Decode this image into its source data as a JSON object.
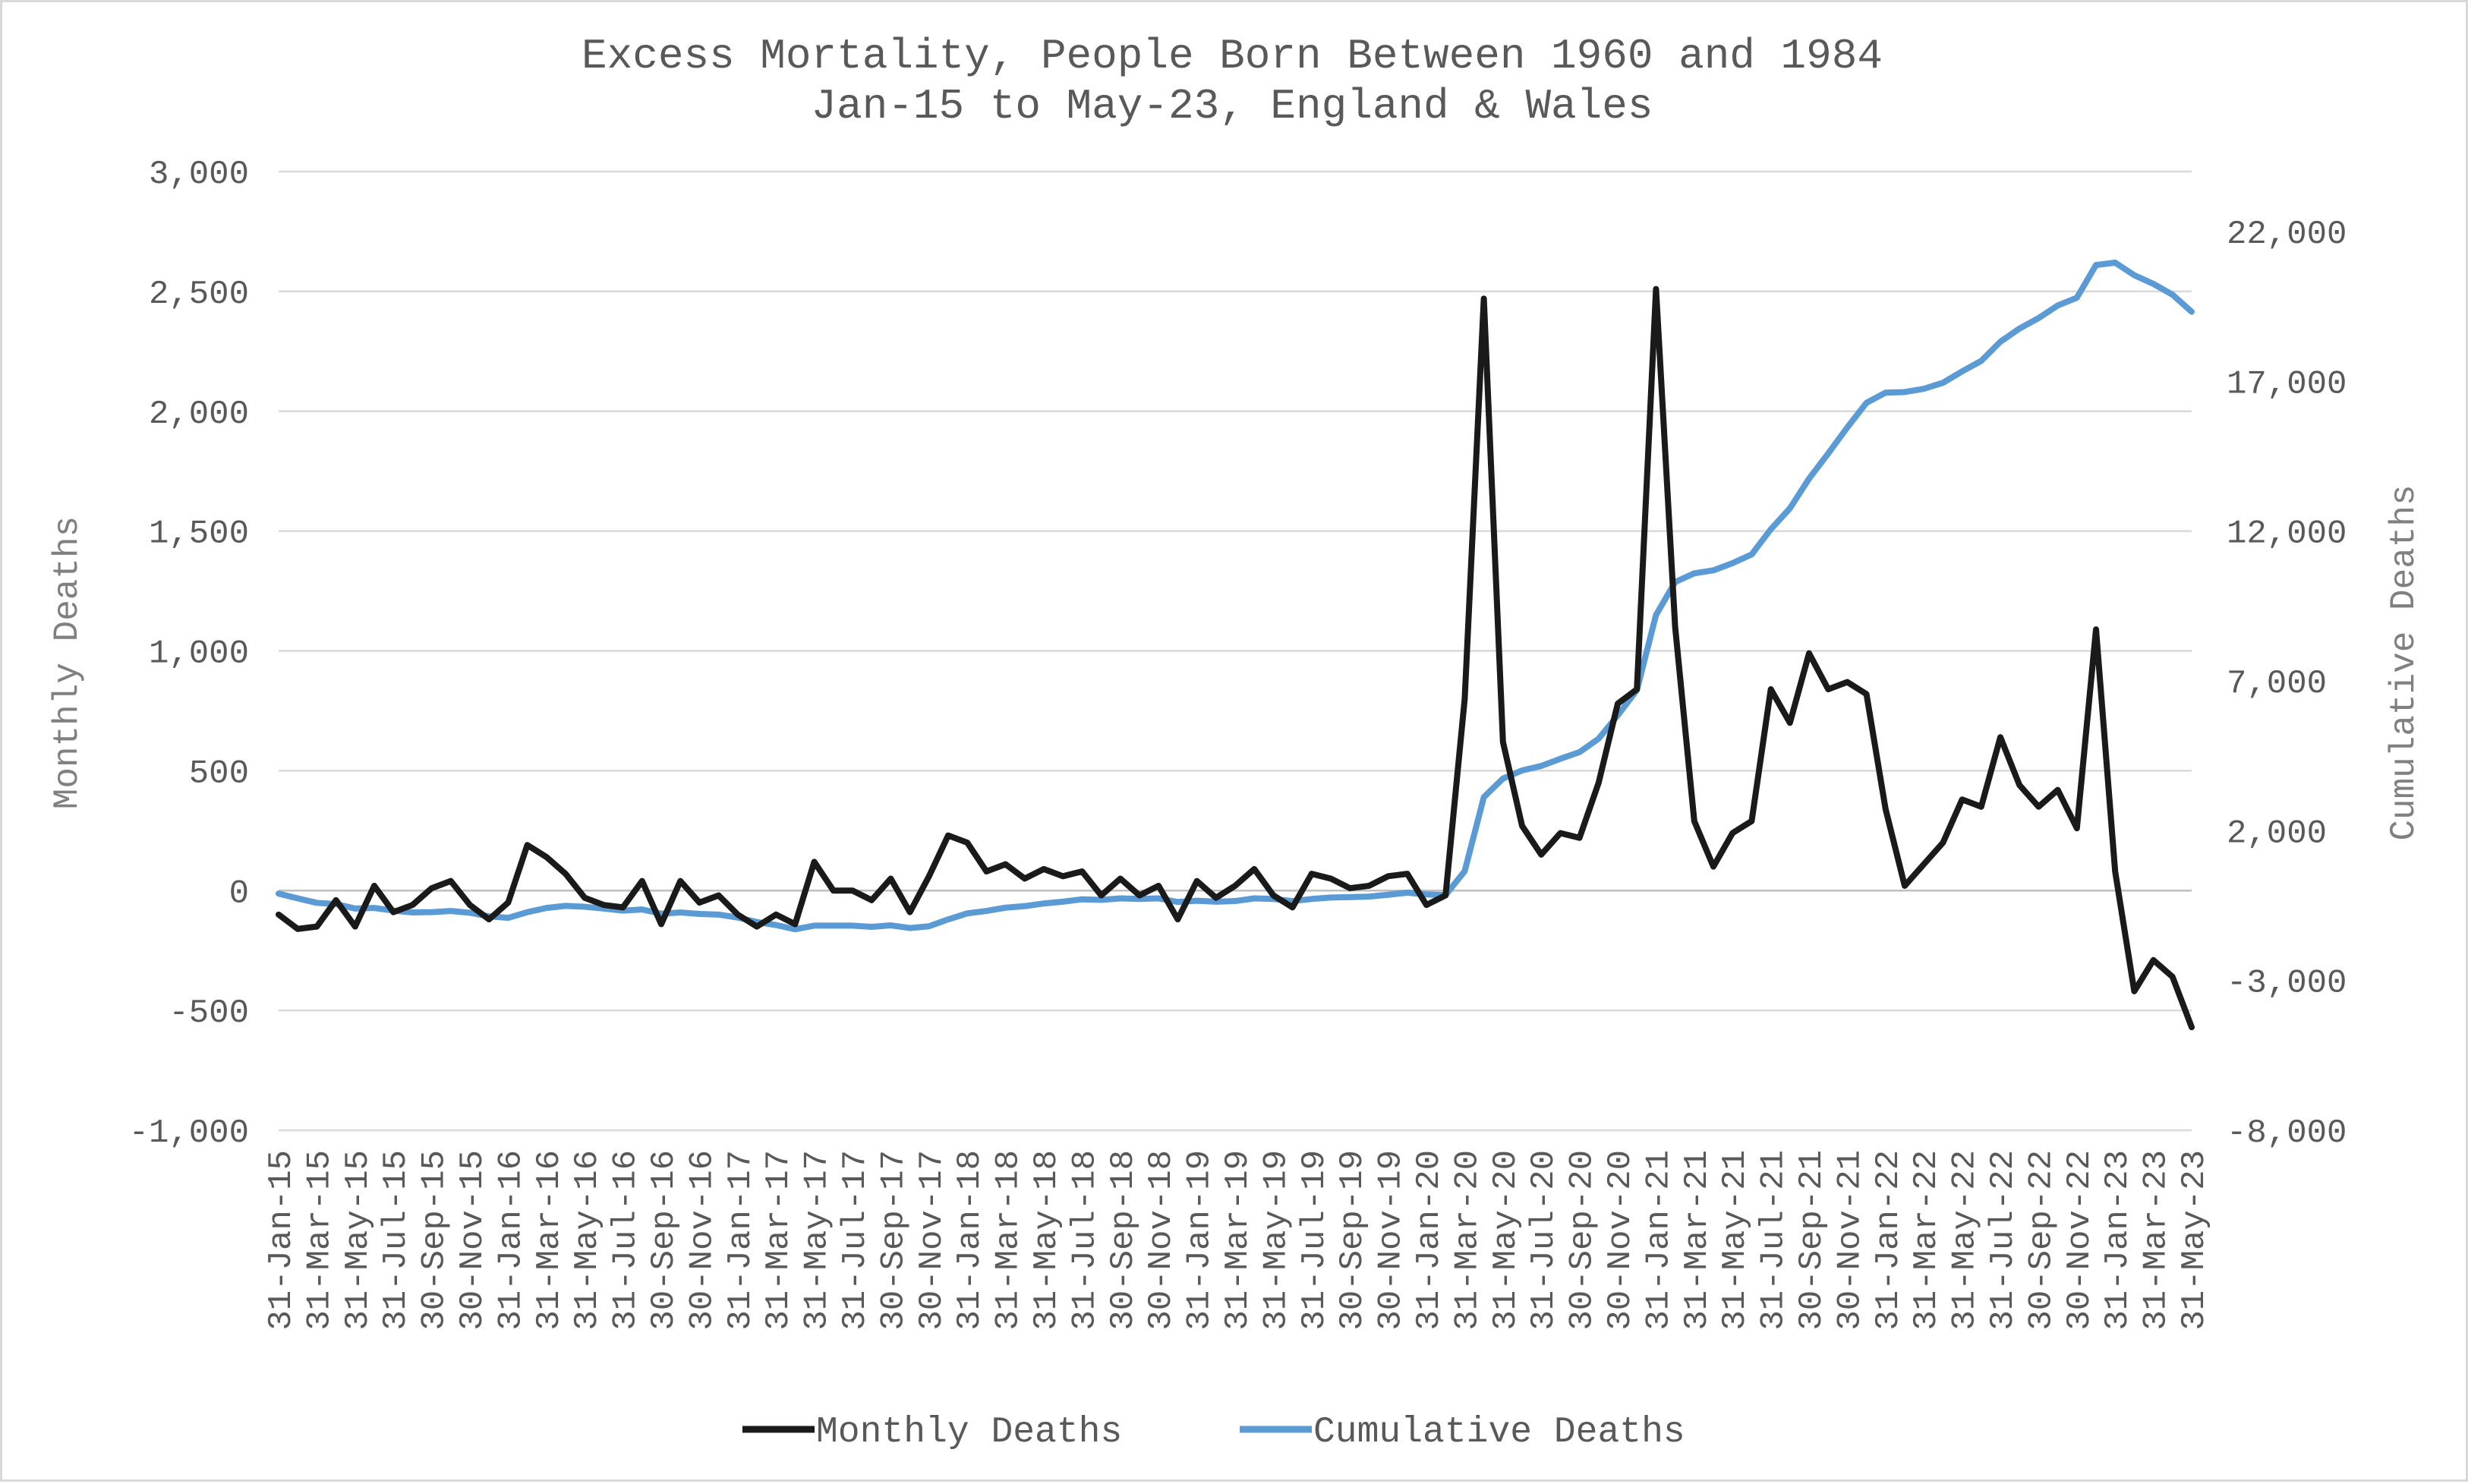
{
  "colors": {
    "monthly": "#1a1a1a",
    "cumulative": "#5b9bd5",
    "grid": "#d9d9d9",
    "text": "#595959"
  },
  "chart_data": {
    "type": "line",
    "title": "Excess Mortality, People Born Between 1960 and 1984",
    "subtitle": "Jan-15 to May-23, England & Wales",
    "xlabel": "",
    "ylabel": "Monthly Deaths",
    "y2label": "Cumulative Deaths",
    "ylim": [
      -1000,
      3000
    ],
    "y2lim": [
      -8000,
      24000
    ],
    "yticks": [
      -1000,
      -500,
      0,
      500,
      1000,
      1500,
      2000,
      2500,
      3000
    ],
    "ytick_labels": [
      "-1,000",
      "-500",
      "0",
      "500",
      "1,000",
      "1,500",
      "2,000",
      "2,500",
      "3,000"
    ],
    "y2ticks": [
      -8000,
      -3000,
      2000,
      7000,
      12000,
      17000,
      22000
    ],
    "y2tick_labels": [
      "-8,000",
      "-3,000",
      "2,000",
      "7,000",
      "12,000",
      "17,000",
      "22,000"
    ],
    "grid": true,
    "legend_position": "bottom",
    "x_tick_labels": [
      "31-Jan-15",
      "31-Mar-15",
      "31-May-15",
      "31-Jul-15",
      "30-Sep-15",
      "30-Nov-15",
      "31-Jan-16",
      "31-Mar-16",
      "31-May-16",
      "31-Jul-16",
      "30-Sep-16",
      "30-Nov-16",
      "31-Jan-17",
      "31-Mar-17",
      "31-May-17",
      "31-Jul-17",
      "30-Sep-17",
      "30-Nov-17",
      "31-Jan-18",
      "31-Mar-18",
      "31-May-18",
      "31-Jul-18",
      "30-Sep-18",
      "30-Nov-18",
      "31-Jan-19",
      "31-Mar-19",
      "31-May-19",
      "31-Jul-19",
      "30-Sep-19",
      "30-Nov-19",
      "31-Jan-20",
      "31-Mar-20",
      "31-May-20",
      "31-Jul-20",
      "30-Sep-20",
      "30-Nov-20",
      "31-Jan-21",
      "31-Mar-21",
      "31-May-21",
      "31-Jul-21",
      "30-Sep-21",
      "30-Nov-21",
      "31-Jan-22",
      "31-Mar-22",
      "31-May-22",
      "31-Jul-22",
      "30-Sep-22",
      "30-Nov-22",
      "31-Jan-23",
      "31-Mar-23",
      "31-May-23"
    ],
    "series": [
      {
        "name": "Monthly Deaths",
        "axis": "left",
        "color": "#1a1a1a",
        "values": [
          -100,
          -160,
          -150,
          -40,
          -150,
          20,
          -90,
          -60,
          10,
          40,
          -60,
          -120,
          -50,
          190,
          140,
          70,
          -30,
          -60,
          -70,
          40,
          -140,
          40,
          -50,
          -20,
          -100,
          -150,
          -100,
          -140,
          120,
          0,
          0,
          -40,
          50,
          -90,
          60,
          230,
          200,
          80,
          110,
          50,
          90,
          60,
          80,
          -20,
          50,
          -20,
          20,
          -120,
          40,
          -30,
          20,
          90,
          -20,
          -70,
          70,
          50,
          10,
          20,
          60,
          70,
          -60,
          -20,
          800,
          2470,
          620,
          270,
          150,
          240,
          220,
          450,
          780,
          840,
          2510,
          1100,
          290,
          100,
          240,
          290,
          840,
          700,
          990,
          840,
          870,
          820,
          340,
          20,
          110,
          200,
          380,
          350,
          640,
          440,
          350,
          420,
          260,
          1090,
          80,
          -420,
          -290,
          -360,
          -570
        ]
      },
      {
        "name": "Cumulative Deaths",
        "axis": "right",
        "color": "#5b9bd5",
        "values": [
          -100,
          -260,
          -410,
          -450,
          -600,
          -580,
          -670,
          -730,
          -720,
          -680,
          -740,
          -860,
          -910,
          -720,
          -580,
          -510,
          -540,
          -600,
          -670,
          -630,
          -770,
          -730,
          -780,
          -800,
          -900,
          -1050,
          -1150,
          -1290,
          -1170,
          -1170,
          -1170,
          -1210,
          -1160,
          -1250,
          -1190,
          -960,
          -760,
          -680,
          -570,
          -520,
          -430,
          -370,
          -290,
          -310,
          -260,
          -280,
          -260,
          -380,
          -340,
          -370,
          -350,
          -260,
          -280,
          -350,
          -280,
          -230,
          -220,
          -200,
          -140,
          -70,
          -130,
          -150,
          650,
          3120,
          3740,
          4010,
          4160,
          4400,
          4620,
          5070,
          5850,
          6690,
          9200,
          10300,
          10590,
          10690,
          10930,
          11220,
          12060,
          12760,
          13750,
          14590,
          15460,
          16280,
          16620,
          16640,
          16750,
          16950,
          17330,
          17680,
          18320,
          18760,
          19110,
          19530,
          19790,
          20880,
          20960,
          20540,
          20250,
          19890,
          19320
        ]
      }
    ]
  },
  "legend": {
    "items": [
      {
        "label": "Monthly Deaths",
        "color": "#1a1a1a"
      },
      {
        "label": "Cumulative Deaths",
        "color": "#5b9bd5"
      }
    ]
  }
}
